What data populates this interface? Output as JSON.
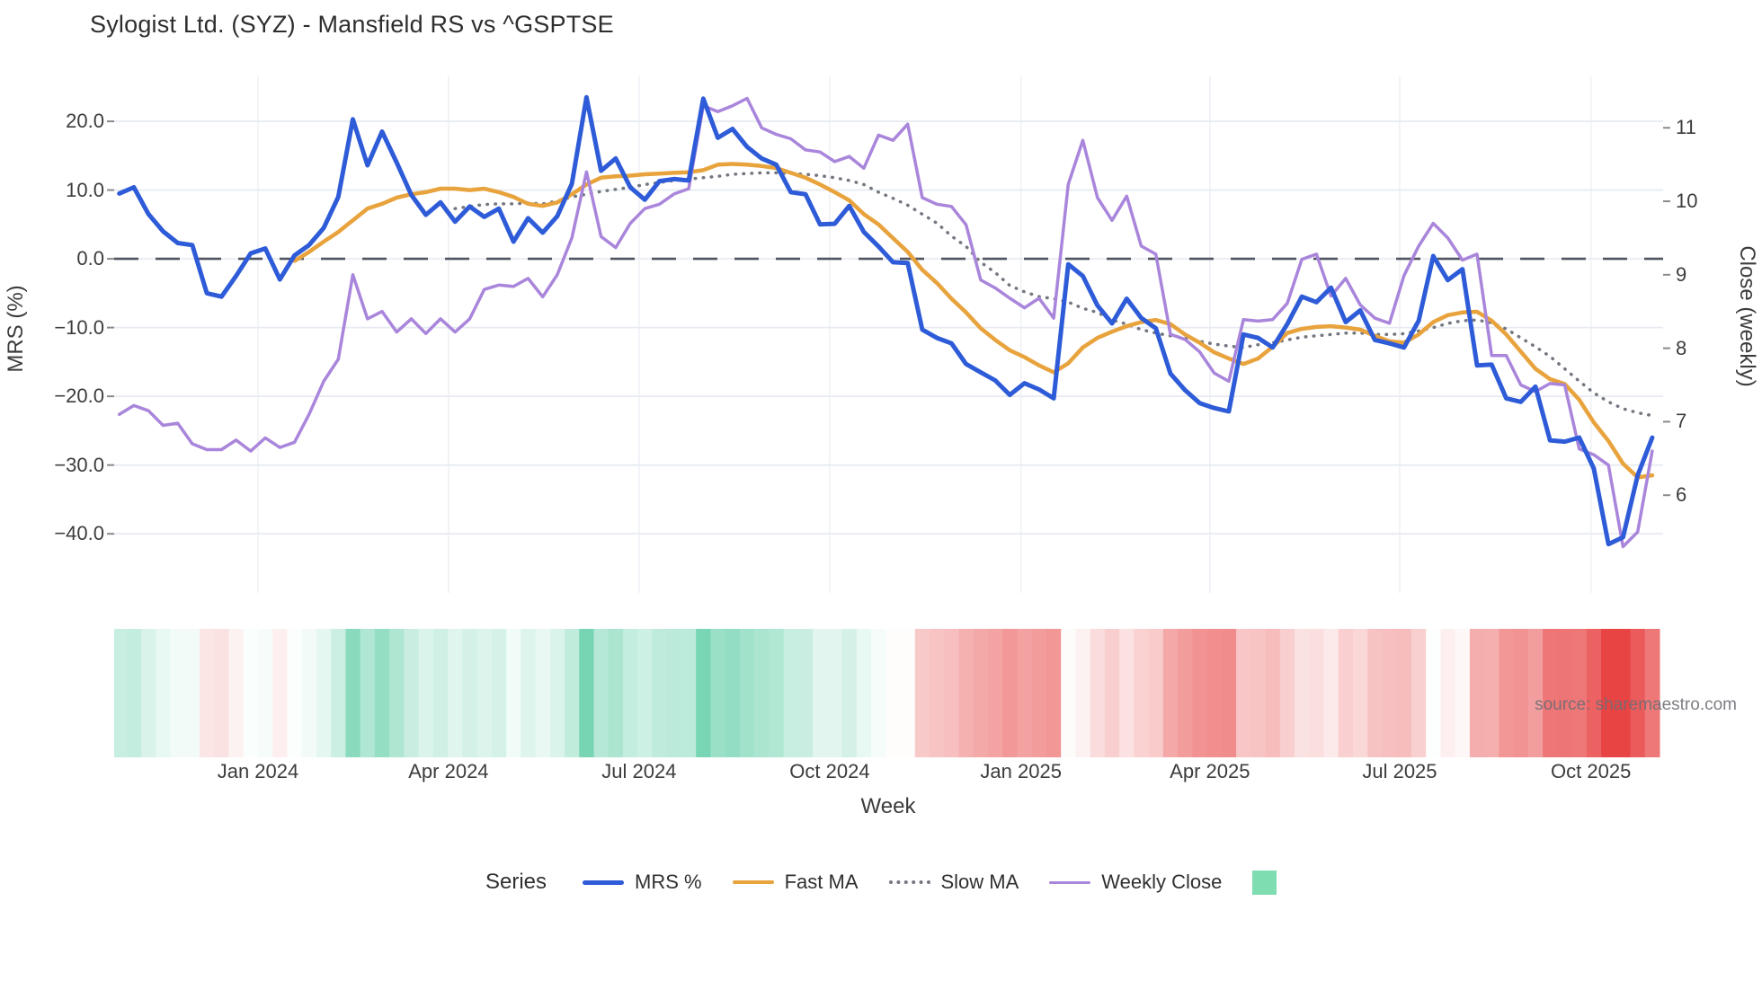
{
  "title": "Sylogist Ltd. (SYZ) - Mansfield RS vs ^GSPTSE",
  "source": "source: sharemaestro.com",
  "axes": {
    "left": {
      "title": "MRS (%)",
      "tick_labels": [
        "20.0",
        "10.0",
        "0.0",
        "−10.0",
        "−20.0",
        "−30.0",
        "−40.0"
      ]
    },
    "right": {
      "title": "Close (weekly)",
      "tick_labels": [
        "11",
        "10",
        "9",
        "8",
        "7",
        "6"
      ]
    },
    "x": {
      "title": "Week",
      "tick_labels": [
        "Jan 2024",
        "Apr 2024",
        "Jul 2024",
        "Oct 2024",
        "Jan 2025",
        "Apr 2025",
        "Jul 2025",
        "Oct 2025"
      ]
    }
  },
  "legend": {
    "series_label": "Series",
    "items": [
      {
        "label": "MRS %",
        "color": "#2E5BD7",
        "style": "solid",
        "thickness": 5
      },
      {
        "label": "Fast MA",
        "color": "#E8A33D",
        "style": "solid",
        "thickness": 4.5
      },
      {
        "label": "Slow MA",
        "color": "#73777F",
        "style": "dotted",
        "thickness": 4
      },
      {
        "label": "Weekly Close",
        "color": "#A985DB",
        "style": "solid",
        "thickness": 3.5
      },
      {
        "label": "",
        "color": "#7EDEB1",
        "style": "square",
        "thickness": 27
      }
    ]
  },
  "chart_data": {
    "type": "line",
    "x_axis": {
      "title": "Week",
      "unit": "weekly points, Nov 2023 - Nov 2025",
      "n_points": 106,
      "tick_labels": [
        "Jan 2024",
        "Apr 2024",
        "Jul 2024",
        "Oct 2024",
        "Jan 2025",
        "Apr 2025",
        "Jul 2025",
        "Oct 2025"
      ],
      "tick_week_positions": [
        9.5,
        22.55,
        35.6,
        48.66,
        61.76,
        74.7,
        87.7,
        100.8
      ]
    },
    "left_axis": {
      "title": "MRS (%)",
      "tick_values": [
        20,
        10,
        0,
        -10,
        -20,
        -30,
        -40
      ],
      "range": [
        -48.6,
        26.54
      ]
    },
    "right_axis": {
      "title": "Close (weekly)",
      "tick_values": [
        11,
        10,
        9,
        8,
        7,
        6
      ],
      "range": [
        4.67,
        11.7
      ]
    },
    "zero_dashed_line": {
      "axis": "left",
      "value": 0,
      "color": "#4E545F"
    },
    "grid": {
      "horizontal": true,
      "vertical": true,
      "color_h": "#E7EBF2",
      "color_v": "#EFF1F6"
    },
    "legend_position": "bottom",
    "series": [
      {
        "name": "MRS %",
        "axis": "left",
        "color": "#2E5BD7",
        "style": "solid",
        "width": 5,
        "values": [
          9.5,
          10.4,
          6.5,
          4.0,
          2.3,
          2.0,
          -5.0,
          -5.5,
          -2.5,
          0.8,
          1.5,
          -3.0,
          0.5,
          2.0,
          4.5,
          9.0,
          20.3,
          13.6,
          18.5,
          14.0,
          9.3,
          6.4,
          8.2,
          5.4,
          7.6,
          6.1,
          7.3,
          2.5,
          5.9,
          3.8,
          6.2,
          10.9,
          23.5,
          12.8,
          14.6,
          10.4,
          8.6,
          11.3,
          11.6,
          11.4,
          23.3,
          17.6,
          18.9,
          16.3,
          14.6,
          13.7,
          9.7,
          9.4,
          5.0,
          5.1,
          7.7,
          3.9,
          1.8,
          -0.5,
          -0.6,
          -10.3,
          -11.5,
          -12.3,
          -15.3,
          -16.5,
          -17.7,
          -19.8,
          -18.1,
          -19.0,
          -20.3,
          -0.8,
          -2.5,
          -6.8,
          -9.4,
          -5.8,
          -8.6,
          -10.1,
          -16.7,
          -19.1,
          -21.0,
          -21.7,
          -22.2,
          -11.0,
          -11.5,
          -12.9,
          -9.5,
          -5.5,
          -6.3,
          -4.2,
          -9.2,
          -7.5,
          -11.8,
          -12.3,
          -12.9,
          -9.0,
          0.4,
          -3.1,
          -1.5,
          -15.5,
          -15.4,
          -20.3,
          -20.8,
          -18.6,
          -26.4,
          -26.6,
          -26.0,
          -30.5,
          -41.5,
          -40.5,
          -31.5,
          -26.0
        ]
      },
      {
        "name": "Fast MA",
        "axis": "left",
        "color": "#E8A33D",
        "style": "solid",
        "width": 4.5,
        "values": [
          null,
          null,
          null,
          null,
          null,
          null,
          null,
          null,
          null,
          null,
          null,
          null,
          -0.3,
          1.0,
          2.5,
          3.9,
          5.6,
          7.3,
          8.0,
          8.9,
          9.4,
          9.7,
          10.2,
          10.2,
          10.0,
          10.2,
          9.7,
          9.0,
          8.0,
          7.7,
          8.2,
          9.4,
          10.8,
          11.8,
          12.0,
          12.1,
          12.3,
          12.4,
          12.5,
          12.6,
          12.9,
          13.7,
          13.8,
          13.7,
          13.5,
          13.2,
          12.5,
          11.8,
          10.8,
          9.7,
          8.5,
          6.5,
          5.0,
          3.0,
          1.0,
          -1.6,
          -3.5,
          -5.8,
          -7.8,
          -10.1,
          -11.8,
          -13.3,
          -14.3,
          -15.5,
          -16.5,
          -15.2,
          -12.9,
          -11.5,
          -10.6,
          -9.8,
          -9.2,
          -8.9,
          -9.5,
          -11.0,
          -12.2,
          -13.6,
          -14.5,
          -15.3,
          -14.5,
          -12.8,
          -10.8,
          -10.2,
          -9.9,
          -9.8,
          -10.0,
          -10.3,
          -11.2,
          -12.0,
          -12.2,
          -11.0,
          -9.2,
          -8.2,
          -7.8,
          -7.7,
          -9.0,
          -11.0,
          -13.5,
          -16.0,
          -17.5,
          -18.2,
          -20.5,
          -23.8,
          -26.5,
          -29.8,
          -31.8,
          -31.5
        ]
      },
      {
        "name": "Slow MA",
        "axis": "left",
        "color": "#73777F",
        "style": "dotted",
        "width": 3.5,
        "values": [
          null,
          null,
          null,
          null,
          null,
          null,
          null,
          null,
          null,
          null,
          null,
          null,
          null,
          null,
          null,
          null,
          null,
          null,
          null,
          null,
          null,
          null,
          null,
          7.3,
          7.6,
          7.9,
          8.0,
          8.0,
          8.1,
          8.0,
          8.4,
          9.0,
          9.4,
          9.8,
          10.1,
          10.4,
          10.8,
          11.1,
          11.4,
          11.6,
          11.8,
          12.0,
          12.3,
          12.4,
          12.5,
          12.5,
          12.4,
          12.3,
          12.1,
          11.8,
          11.4,
          10.8,
          9.7,
          8.8,
          7.8,
          6.5,
          5.2,
          3.3,
          1.8,
          -0.5,
          -2.0,
          -3.9,
          -4.8,
          -5.5,
          -5.8,
          -6.3,
          -7.2,
          -7.8,
          -8.9,
          -9.5,
          -10.3,
          -10.8,
          -11.2,
          -11.5,
          -12.0,
          -12.4,
          -12.7,
          -12.9,
          -12.5,
          -12.2,
          -11.8,
          -11.4,
          -11.2,
          -11.0,
          -10.8,
          -10.8,
          -11.0,
          -11.0,
          -10.9,
          -10.5,
          -10.0,
          -9.4,
          -9.0,
          -8.9,
          -9.3,
          -10.2,
          -11.5,
          -12.8,
          -14.2,
          -16.0,
          -17.8,
          -19.5,
          -20.8,
          -21.8,
          -22.4,
          -22.8
        ]
      },
      {
        "name": "Weekly Close",
        "axis": "right",
        "color": "#A985DB",
        "style": "solid",
        "width": 3.5,
        "values": [
          7.1,
          7.22,
          7.15,
          6.95,
          6.98,
          6.7,
          6.62,
          6.62,
          6.75,
          6.6,
          6.78,
          6.65,
          6.72,
          7.1,
          7.55,
          7.85,
          9.0,
          8.4,
          8.5,
          8.22,
          8.4,
          8.2,
          8.4,
          8.22,
          8.4,
          8.8,
          8.86,
          8.84,
          8.95,
          8.7,
          9.0,
          9.5,
          10.4,
          9.52,
          9.37,
          9.7,
          9.9,
          9.96,
          10.1,
          10.17,
          11.3,
          11.22,
          11.3,
          11.4,
          11.0,
          10.91,
          10.85,
          10.7,
          10.67,
          10.54,
          10.61,
          10.45,
          10.9,
          10.83,
          11.05,
          10.05,
          9.96,
          9.93,
          9.68,
          8.93,
          8.82,
          8.68,
          8.55,
          8.68,
          8.41,
          10.23,
          10.83,
          10.05,
          9.74,
          10.07,
          9.39,
          9.28,
          8.19,
          8.12,
          7.95,
          7.66,
          7.55,
          8.39,
          8.37,
          8.39,
          8.61,
          9.21,
          9.28,
          8.71,
          8.95,
          8.59,
          8.41,
          8.34,
          8.99,
          9.39,
          9.7,
          9.5,
          9.2,
          9.28,
          7.9,
          7.9,
          7.5,
          7.41,
          7.52,
          7.5,
          6.63,
          6.55,
          6.41,
          5.3,
          5.5,
          6.6
        ]
      }
    ],
    "heatmap_strip": {
      "source_series": "MRS %",
      "positive_color": "#2FBF8C",
      "negative_color": "#E84444",
      "full_intensity_abs_value": 36
    }
  }
}
